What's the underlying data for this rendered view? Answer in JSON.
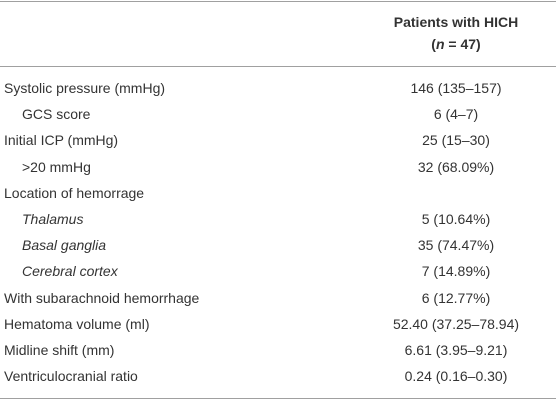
{
  "header": {
    "column_title": "Patients with HICH",
    "n_line": [
      "(",
      "n",
      " = 47)"
    ]
  },
  "table": {
    "rows": [
      [
        "Systolic pressure (mmHg)",
        "146 (135–157)"
      ],
      [
        "GCS score",
        "6 (4–7)"
      ],
      [
        "Initial ICP (mmHg)",
        "25 (15–30)"
      ],
      [
        ">20 mmHg",
        "32 (68.09%)"
      ],
      [
        "Location of hemorrage",
        null
      ],
      [
        "Thalamus",
        "5 (10.64%)"
      ],
      [
        "Basal ganglia",
        "35 (74.47%)"
      ],
      [
        "Cerebral cortex",
        "7 (14.89%)"
      ],
      [
        "With subarachnoid hemorrhage",
        "6 (12.77%)"
      ],
      [
        "Hematoma volume (ml)",
        "52.40 (37.25–78.94)"
      ],
      [
        "Midline shift (mm)",
        "6.61 (3.95–9.21)"
      ],
      [
        "Ventriculocranial ratio",
        "0.24 (0.16–0.30)"
      ]
    ]
  }
}
